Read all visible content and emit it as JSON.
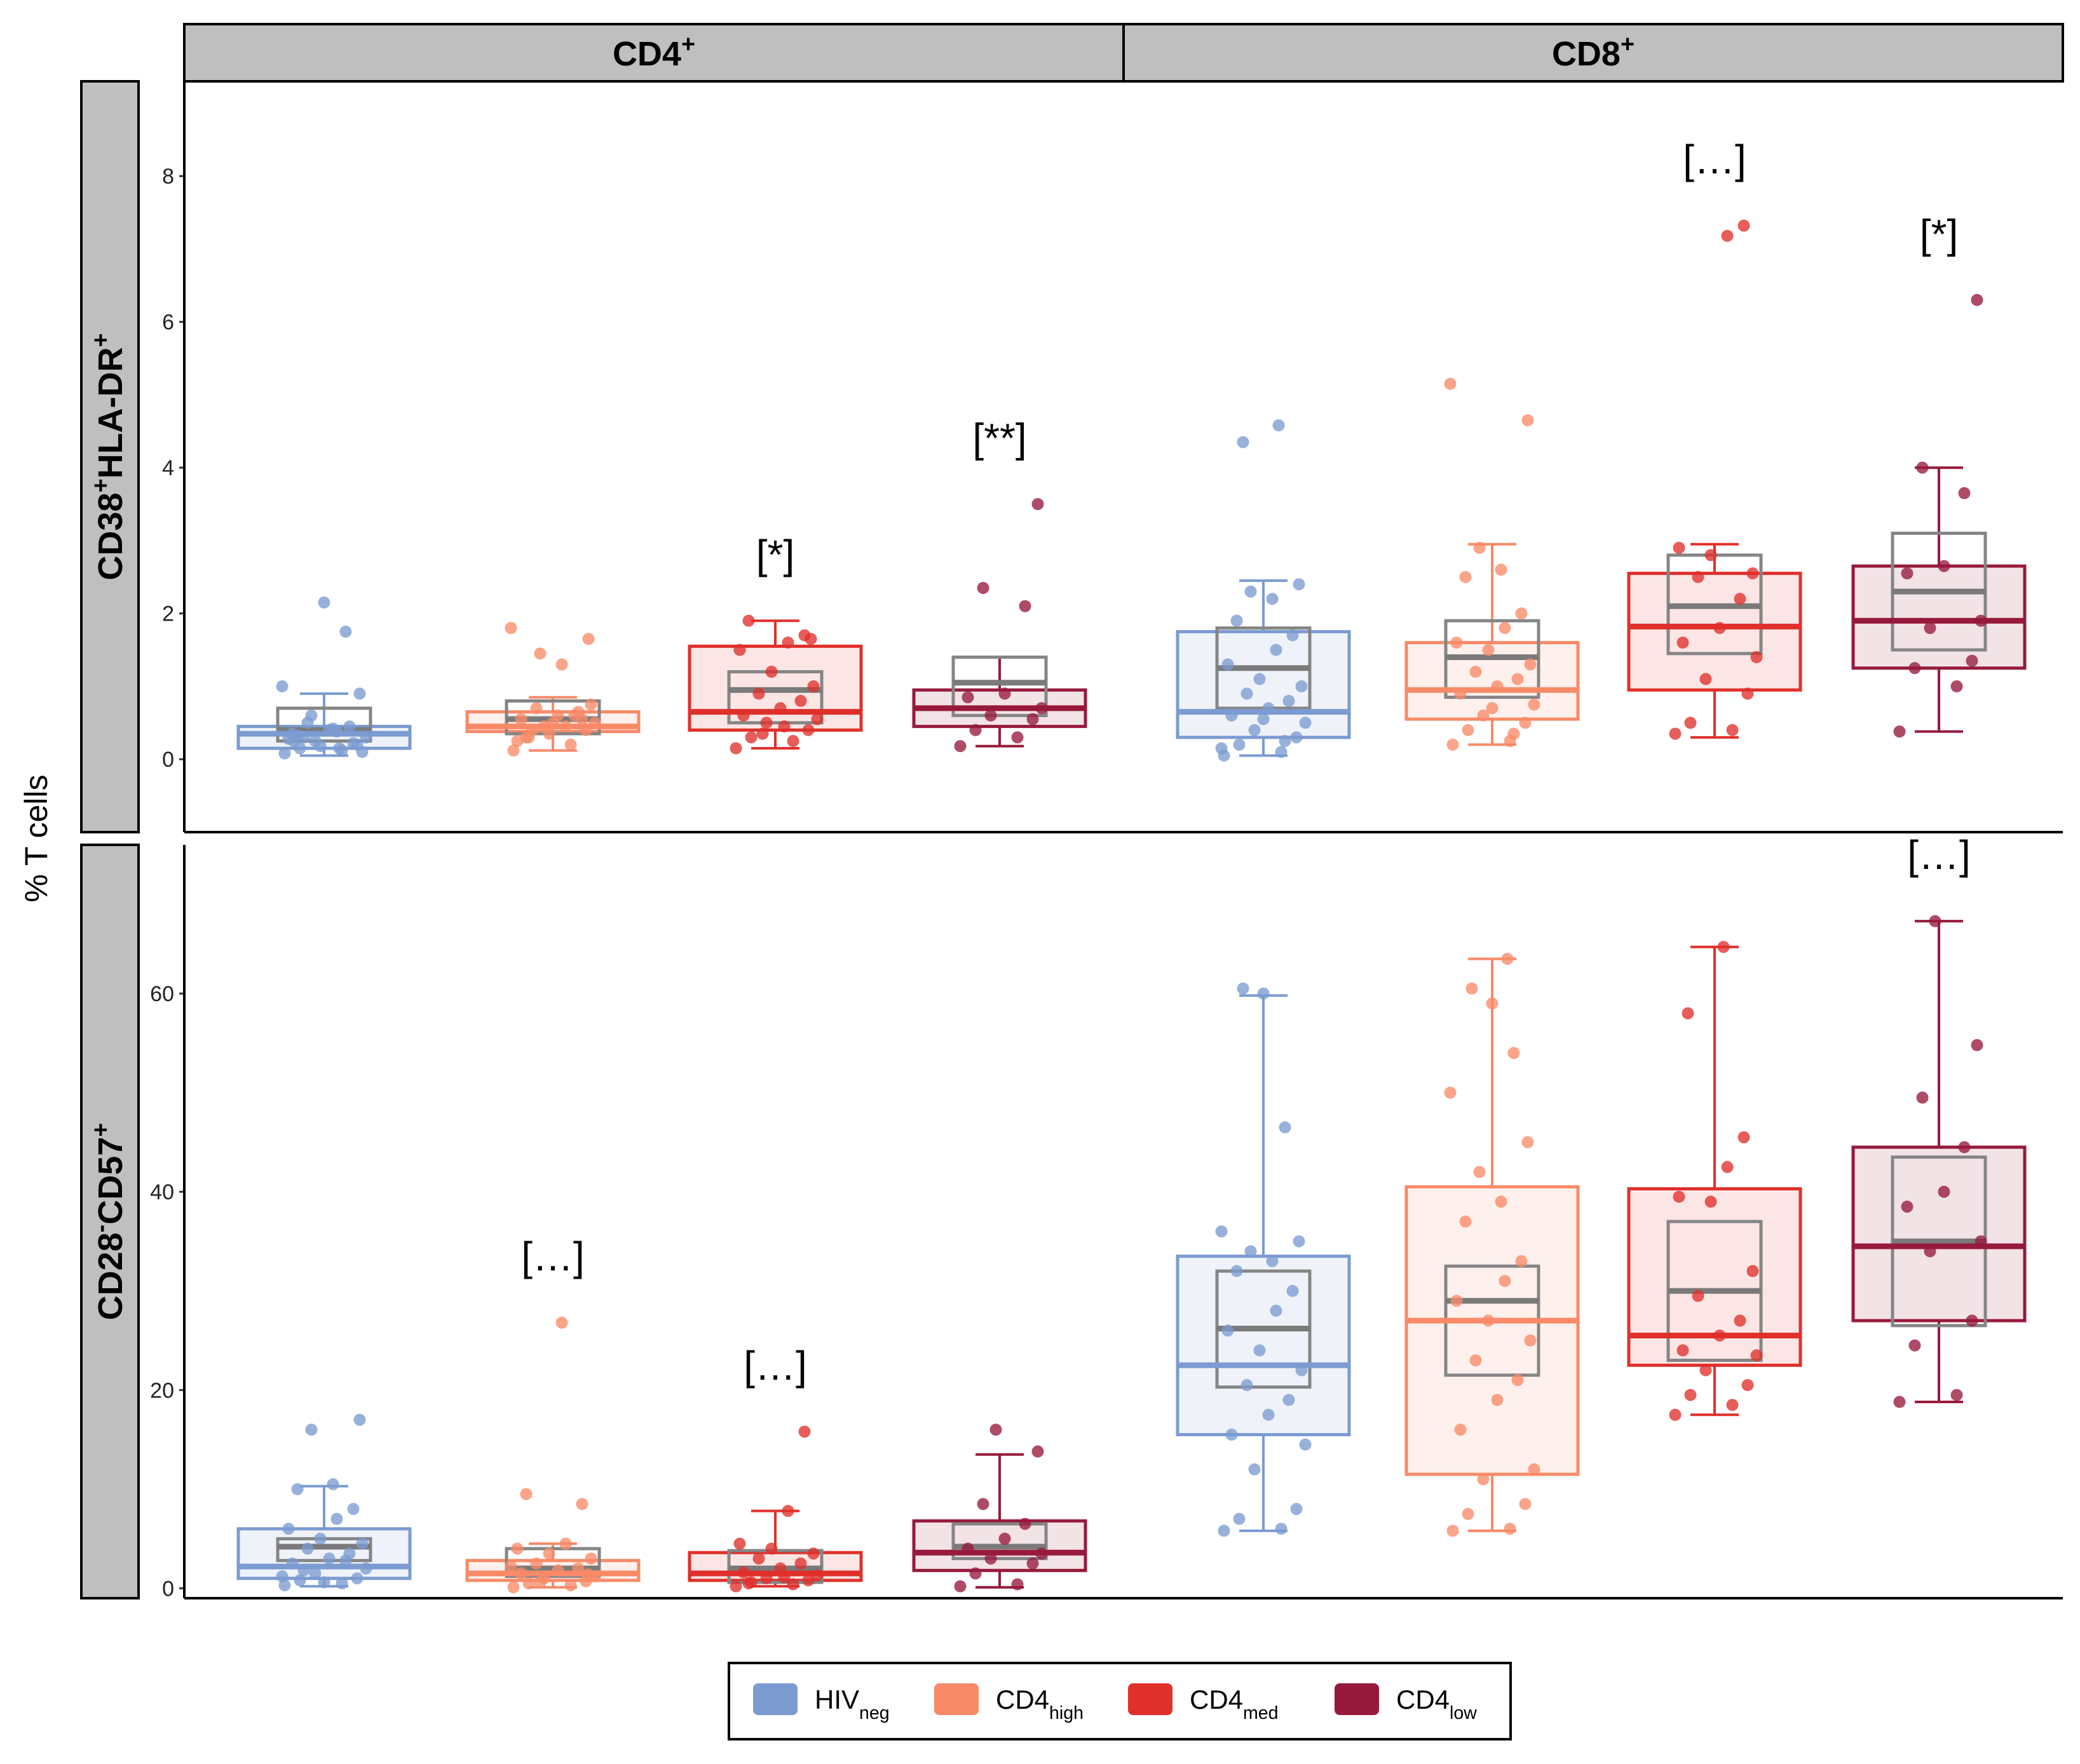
{
  "chart_data": {
    "type": "box",
    "ylabel": "% T cells",
    "columns": [
      {
        "label": "CD4",
        "sup": "+"
      },
      {
        "label": "CD8",
        "sup": "+"
      }
    ],
    "rows": [
      {
        "label_parts": [
          [
            "CD38",
            ""
          ],
          [
            "+",
            "sup"
          ],
          [
            "HLA-DR",
            ""
          ],
          [
            "+",
            "sup"
          ]
        ],
        "ylim": [
          -1,
          9.3
        ],
        "ticks": [
          0,
          2,
          4,
          6,
          8
        ]
      },
      {
        "label_parts": [
          [
            "CD28",
            ""
          ],
          [
            "-",
            "sup"
          ],
          [
            "CD57",
            ""
          ],
          [
            "+",
            "sup"
          ]
        ],
        "ylim": [
          -1,
          75
        ],
        "ticks": [
          0,
          20,
          40,
          60
        ]
      }
    ],
    "groups": [
      {
        "name": "HIV",
        "sub": "neg",
        "color": "#7b9bd1"
      },
      {
        "name": "CD4",
        "sub": "high",
        "color": "#f98a68"
      },
      {
        "name": "CD4",
        "sub": "med",
        "color": "#e0302b"
      },
      {
        "name": "CD4",
        "sub": "low",
        "color": "#971a3c"
      }
    ],
    "panels": [
      {
        "row": 0,
        "col": 0,
        "groups": [
          {
            "box": [
              0.15,
              0.35,
              0.45
            ],
            "ref": [
              0.25,
              0.4,
              0.7
            ],
            "whisker": [
              0.05,
              0.9
            ],
            "annotation": "",
            "points": [
              0.08,
              0.12,
              0.15,
              0.2,
              0.25,
              0.3,
              0.35,
              0.4,
              0.45,
              0.5,
              0.1,
              0.18,
              0.28,
              0.38,
              0.22,
              0.32,
              0.42,
              0.6,
              0.9,
              1.0,
              1.75,
              2.15,
              0.3,
              0.15,
              0.25
            ]
          },
          {
            "box": [
              0.38,
              0.45,
              0.65
            ],
            "ref": [
              0.35,
              0.55,
              0.8
            ],
            "whisker": [
              0.12,
              0.85
            ],
            "annotation": "",
            "points": [
              0.12,
              0.2,
              0.3,
              0.4,
              0.45,
              0.5,
              0.55,
              0.6,
              0.65,
              0.7,
              0.75,
              0.35,
              0.25,
              0.45,
              0.55,
              0.3,
              1.3,
              1.45,
              1.65,
              1.8,
              0.6,
              0.5,
              0.4
            ]
          },
          {
            "box": [
              0.4,
              0.65,
              1.55
            ],
            "ref": [
              0.5,
              0.95,
              1.2
            ],
            "whisker": [
              0.15,
              1.9
            ],
            "annotation": "[*]",
            "points": [
              0.15,
              0.25,
              0.3,
              0.4,
              0.5,
              0.55,
              0.6,
              0.7,
              0.8,
              0.9,
              1.0,
              1.2,
              1.5,
              1.6,
              1.7,
              1.9,
              0.45,
              0.35,
              1.65
            ]
          },
          {
            "box": [
              0.45,
              0.7,
              0.95
            ],
            "ref": [
              0.6,
              1.05,
              1.4
            ],
            "whisker": [
              0.18,
              1.4
            ],
            "annotation": "[**]",
            "points": [
              0.18,
              0.3,
              0.4,
              0.55,
              0.6,
              0.7,
              0.85,
              0.9,
              2.1,
              2.35,
              3.5
            ]
          }
        ]
      },
      {
        "row": 0,
        "col": 1,
        "groups": [
          {
            "box": [
              0.3,
              0.65,
              1.75
            ],
            "ref": [
              0.7,
              1.25,
              1.8
            ],
            "whisker": [
              0.05,
              2.45
            ],
            "annotation": "",
            "points": [
              0.05,
              0.1,
              0.2,
              0.3,
              0.4,
              0.5,
              0.6,
              0.7,
              0.8,
              0.9,
              1.0,
              1.1,
              1.3,
              1.5,
              1.7,
              1.9,
              2.2,
              2.3,
              2.4,
              0.15,
              0.25,
              0.55,
              4.35,
              4.58
            ]
          },
          {
            "box": [
              0.55,
              0.95,
              1.6
            ],
            "ref": [
              0.85,
              1.4,
              1.9
            ],
            "whisker": [
              0.2,
              2.95
            ],
            "annotation": "",
            "points": [
              0.2,
              0.25,
              0.4,
              0.5,
              0.6,
              0.75,
              0.9,
              1.0,
              1.1,
              1.2,
              1.3,
              1.5,
              1.6,
              1.8,
              2.0,
              2.5,
              2.6,
              2.9,
              4.65,
              5.15,
              0.35,
              0.7
            ]
          },
          {
            "box": [
              0.95,
              1.82,
              2.55
            ],
            "ref": [
              1.45,
              2.1,
              2.8
            ],
            "whisker": [
              0.3,
              2.95
            ],
            "annotation": "[…]",
            "points": [
              0.35,
              0.4,
              0.5,
              0.9,
              1.1,
              1.4,
              1.6,
              1.8,
              2.2,
              2.5,
              2.55,
              2.8,
              2.9,
              7.18,
              7.32
            ]
          },
          {
            "box": [
              1.25,
              1.9,
              2.65
            ],
            "ref": [
              1.5,
              2.3,
              3.1
            ],
            "whisker": [
              0.38,
              4.0
            ],
            "annotation": "[*]",
            "points": [
              0.38,
              1.0,
              1.25,
              1.35,
              1.8,
              1.9,
              2.55,
              2.65,
              3.65,
              4.0,
              6.3
            ]
          }
        ]
      },
      {
        "row": 1,
        "col": 0,
        "groups": [
          {
            "box": [
              1.0,
              2.2,
              6.0
            ],
            "ref": [
              2.8,
              4.2,
              5.0
            ],
            "whisker": [
              0.2,
              10.3
            ],
            "annotation": "",
            "points": [
              0.3,
              0.5,
              0.8,
              1.0,
              1.5,
              2.0,
              2.5,
              3.0,
              3.5,
              4.0,
              4.5,
              5.0,
              6.0,
              7.0,
              8.0,
              10.0,
              10.5,
              16.0,
              17.0,
              1.2,
              2.8,
              0.6,
              1.8
            ]
          },
          {
            "box": [
              0.8,
              1.5,
              2.8
            ],
            "ref": [
              1.2,
              2.0,
              4.0
            ],
            "whisker": [
              0.1,
              4.5
            ],
            "annotation": "[…]",
            "points": [
              0.1,
              0.3,
              0.5,
              0.7,
              1.0,
              1.2,
              1.5,
              1.8,
              2.0,
              2.5,
              3.0,
              3.5,
              4.0,
              4.5,
              8.5,
              9.5,
              26.8,
              0.6,
              1.4,
              2.2
            ]
          },
          {
            "box": [
              0.8,
              1.5,
              3.6
            ],
            "ref": [
              0.6,
              2.0,
              3.8
            ],
            "whisker": [
              0.2,
              7.8
            ],
            "annotation": "[…]",
            "points": [
              0.2,
              0.4,
              0.6,
              0.8,
              1.0,
              1.3,
              1.6,
              2.0,
              2.5,
              3.0,
              3.5,
              4.0,
              4.5,
              7.8,
              15.8,
              0.5,
              1.1
            ]
          },
          {
            "box": [
              1.8,
              3.6,
              6.8
            ],
            "ref": [
              3.0,
              4.2,
              6.5
            ],
            "whisker": [
              0.1,
              13.5
            ],
            "annotation": "",
            "points": [
              0.2,
              0.4,
              1.5,
              2.5,
              3.0,
              3.5,
              4.0,
              5.0,
              6.5,
              8.5,
              13.8,
              16.0
            ]
          }
        ]
      },
      {
        "row": 1,
        "col": 1,
        "groups": [
          {
            "box": [
              15.5,
              22.5,
              33.5
            ],
            "ref": [
              20.3,
              26.2,
              32.0
            ],
            "whisker": [
              5.8,
              59.8
            ],
            "annotation": "",
            "points": [
              5.8,
              6.0,
              7.0,
              8.0,
              12.0,
              14.5,
              15.5,
              17.5,
              19.0,
              20.5,
              22.0,
              24.0,
              26.0,
              28.0,
              30.0,
              32.0,
              33.0,
              34.0,
              35.0,
              36.0,
              46.5,
              60.0,
              60.5
            ]
          },
          {
            "box": [
              11.5,
              27.0,
              40.5
            ],
            "ref": [
              21.5,
              29.0,
              32.5
            ],
            "whisker": [
              5.8,
              63.5
            ],
            "annotation": "",
            "points": [
              5.8,
              6.0,
              7.5,
              8.5,
              11.0,
              12.0,
              16.0,
              19.0,
              21.0,
              23.0,
              25.0,
              27.0,
              29.0,
              31.0,
              33.0,
              37.0,
              39.0,
              42.0,
              45.0,
              50.0,
              54.0,
              59.0,
              60.5,
              63.5
            ]
          },
          {
            "box": [
              22.5,
              25.5,
              40.3
            ],
            "ref": [
              23.0,
              30.0,
              37.0
            ],
            "whisker": [
              17.5,
              64.7
            ],
            "annotation": "",
            "points": [
              17.5,
              18.5,
              19.5,
              20.5,
              22.0,
              23.5,
              24.0,
              25.5,
              27.0,
              29.5,
              32.0,
              39.0,
              39.5,
              42.5,
              45.5,
              58.0,
              64.7
            ]
          },
          {
            "box": [
              27.0,
              34.5,
              44.5
            ],
            "ref": [
              26.5,
              35.0,
              43.5
            ],
            "whisker": [
              18.8,
              67.3
            ],
            "annotation": "[…]",
            "points": [
              18.8,
              19.5,
              24.5,
              27.0,
              34.0,
              35.0,
              38.5,
              40.0,
              44.5,
              49.5,
              54.8,
              67.3
            ]
          }
        ]
      }
    ]
  }
}
